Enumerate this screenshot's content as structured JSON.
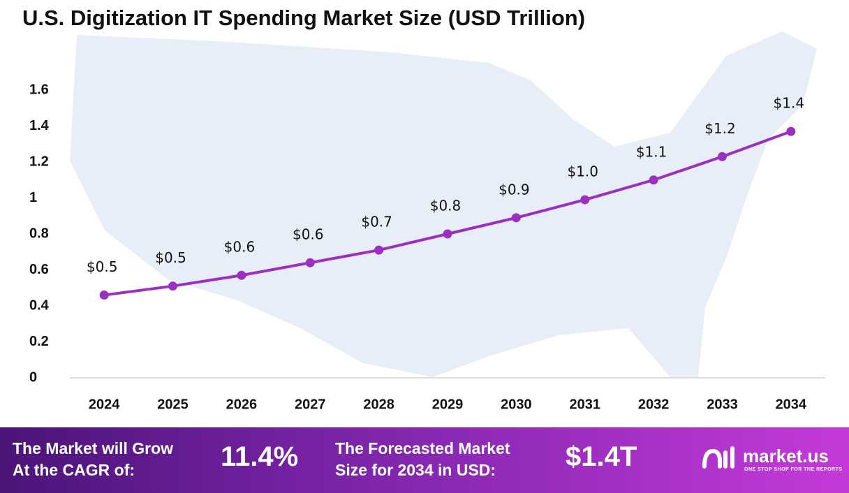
{
  "chart_data": {
    "type": "line",
    "title": "U.S. Digitization IT Spending Market Size (USD Trillion)",
    "categories": [
      "2024",
      "2025",
      "2026",
      "2027",
      "2028",
      "2029",
      "2030",
      "2031",
      "2032",
      "2033",
      "2034"
    ],
    "series": [
      {
        "color": "#9a2fc2",
        "values": [
          0.46,
          0.51,
          0.57,
          0.64,
          0.71,
          0.8,
          0.89,
          0.99,
          1.1,
          1.23,
          1.37
        ],
        "value_labels": [
          "$0.5",
          "$0.5",
          "$0.6",
          "$0.6",
          "$0.7",
          "$0.8",
          "$0.9",
          "$1.0",
          "$1.1",
          "$1.2",
          "$1.4"
        ]
      }
    ],
    "ylim": [
      0,
      1.6
    ],
    "yticks": [
      0,
      0.2,
      0.4,
      0.6,
      0.8,
      1,
      1.2,
      1.4,
      1.6
    ],
    "grid": false
  },
  "footer": {
    "cagr_label": [
      "The Market will Grow",
      "At the CAGR of:"
    ],
    "cagr_value": "11.4%",
    "forecast_label": [
      "The Forecasted Market",
      "Size for 2034 in USD:"
    ],
    "forecast_value": "$1.4T",
    "brand": "market.us",
    "tagline": "ONE STOP SHOP FOR THE REPORTS"
  }
}
